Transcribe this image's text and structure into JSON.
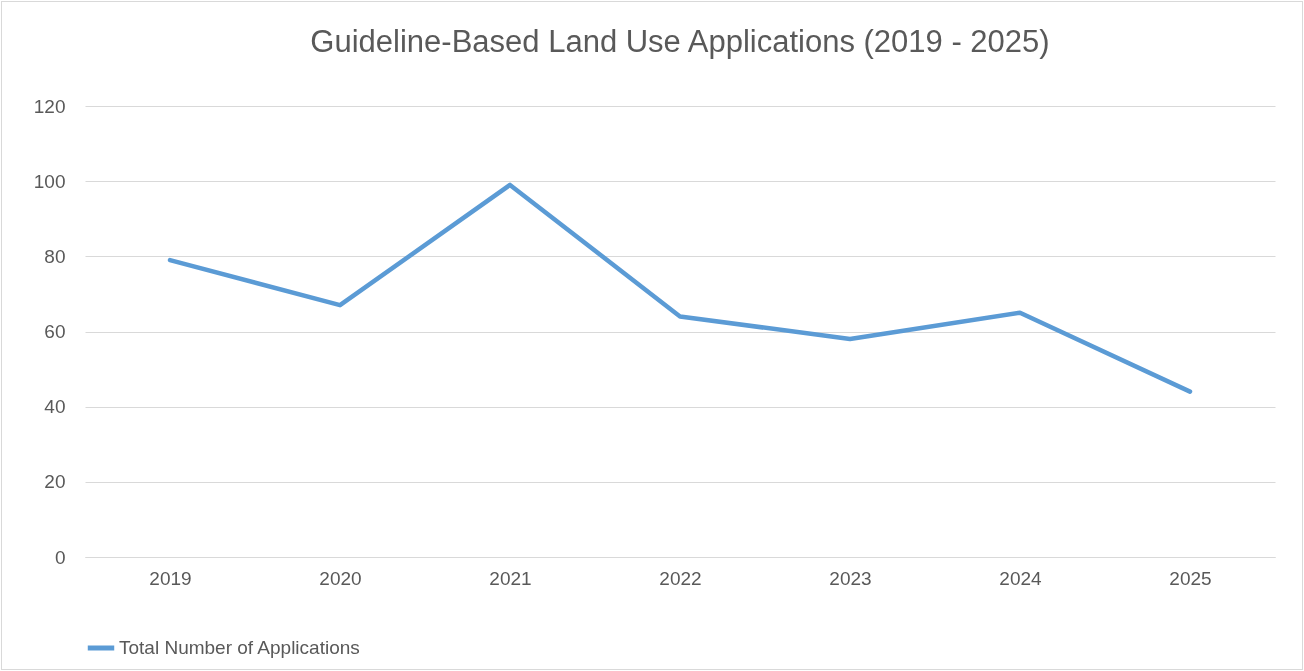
{
  "chart_data": {
    "type": "line",
    "title": "Guideline-Based Land Use Applications (2019 - 2025)",
    "categories": [
      "2019",
      "2020",
      "2021",
      "2022",
      "2023",
      "2024",
      "2025"
    ],
    "series": [
      {
        "name": "Total Number of Applications",
        "color": "#5b9bd5",
        "values": [
          79,
          67,
          99,
          64,
          58,
          65,
          44
        ]
      }
    ],
    "ylim": [
      0,
      120
    ],
    "yticks": [
      0,
      20,
      40,
      60,
      80,
      100,
      120
    ],
    "grid": "y",
    "legend": "bottom"
  }
}
